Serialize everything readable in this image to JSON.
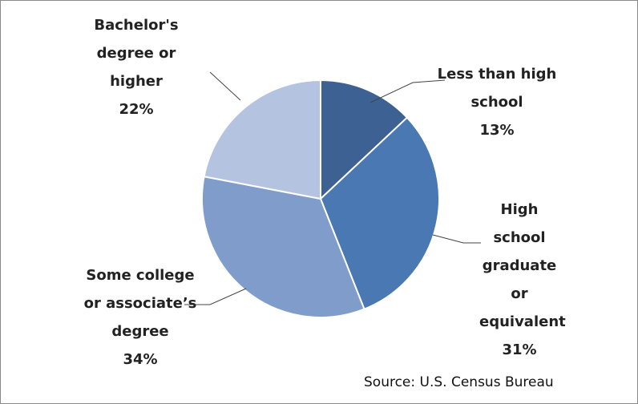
{
  "chart_data": {
    "type": "pie",
    "categories": [
      "Less than high school",
      "High school graduate or equivalent",
      "Some college or associate’s degree",
      "Bachelor's degree or higher"
    ],
    "values": [
      13,
      31,
      34,
      22
    ],
    "value_labels": [
      "13%",
      "31%",
      "34%",
      "22%"
    ],
    "colors": [
      "#3e6193",
      "#4a78b2",
      "#7f9ccb",
      "#b4c4e0"
    ],
    "source": "Source: U.S. Census Bureau"
  }
}
